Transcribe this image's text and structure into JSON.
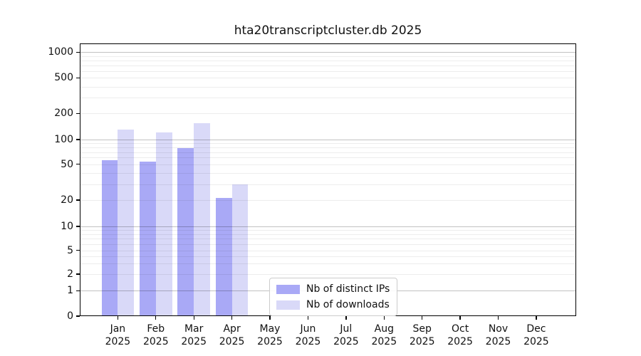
{
  "title": "hta20transcriptcluster.db 2025",
  "chart_data": {
    "type": "bar",
    "title": "hta20transcriptcluster.db 2025",
    "x_year": "2025",
    "categories": [
      "Jan",
      "Feb",
      "Mar",
      "Apr",
      "May",
      "Jun",
      "Jul",
      "Aug",
      "Sep",
      "Oct",
      "Nov",
      "Dec"
    ],
    "series": [
      {
        "name": "Nb of distinct IPs",
        "color": "#a9a9f6",
        "values": [
          56,
          54,
          78,
          21,
          0,
          0,
          0,
          0,
          0,
          0,
          0,
          0
        ]
      },
      {
        "name": "Nb of downloads",
        "color": "#d9d9f8",
        "values": [
          130,
          120,
          156,
          30,
          0,
          0,
          0,
          0,
          0,
          0,
          0,
          0
        ]
      }
    ],
    "y_ticks": [
      0,
      1,
      2,
      5,
      10,
      20,
      50,
      100,
      200,
      500,
      1000
    ],
    "scale": "log-like",
    "xlabel": "",
    "ylabel": "",
    "grid": "horizontal",
    "legend_position": "lower center"
  }
}
